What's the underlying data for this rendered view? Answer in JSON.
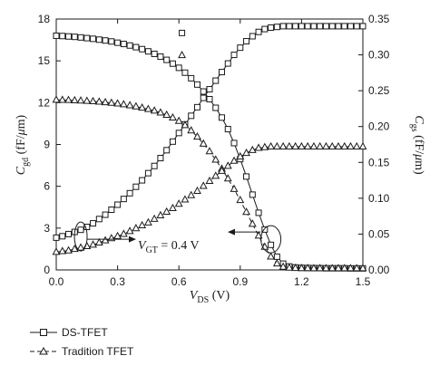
{
  "chart_data": {
    "type": "line",
    "xlabel": {
      "main": "V",
      "sub": "DS",
      "unit": " (V)"
    },
    "ylabel_left": {
      "main": "C",
      "sub": "gd",
      "unit": " (fF/",
      "mu": "μ",
      "end": "m)"
    },
    "ylabel_right": {
      "main": "C",
      "sub": "gs",
      "unit": " (fF/",
      "mu": "μ",
      "end": "m)"
    },
    "xlim": [
      0,
      1.5
    ],
    "ylim_left": [
      0,
      18
    ],
    "ylim_right": [
      0,
      0.35
    ],
    "x_ticks": [
      "0.0",
      "0.3",
      "0.6",
      "0.9",
      "1.2",
      "1.5"
    ],
    "y_ticks_left": [
      "0",
      "3",
      "6",
      "9",
      "12",
      "15",
      "18"
    ],
    "y_ticks_right": [
      "0.00",
      "0.05",
      "0.10",
      "0.15",
      "0.20",
      "0.25",
      "0.30",
      "0.35"
    ],
    "annotation": {
      "main": "V",
      "sub": "GT",
      "rest": " = 0.4 V"
    },
    "legend": [
      {
        "name": "DS-TFET",
        "marker": "square",
        "dash": false
      },
      {
        "name": "Tradition TFET",
        "marker": "triangle",
        "dash": true
      }
    ],
    "stray_markers": [
      {
        "marker": "square",
        "x": 0.615,
        "y_left": 17.0
      },
      {
        "marker": "triangle",
        "x": 0.615,
        "y_left": 15.4
      }
    ],
    "series": [
      {
        "name": "DS-TFET",
        "quantity": "Cgd",
        "axis": "left",
        "marker": "square",
        "dash": false,
        "x": [
          0.0,
          0.03,
          0.06,
          0.09,
          0.12,
          0.15,
          0.18,
          0.21,
          0.24,
          0.27,
          0.3,
          0.33,
          0.36,
          0.39,
          0.42,
          0.45,
          0.48,
          0.51,
          0.54,
          0.57,
          0.6,
          0.63,
          0.66,
          0.69,
          0.72,
          0.75,
          0.78,
          0.81,
          0.84,
          0.87,
          0.9,
          0.93,
          0.96,
          0.99,
          1.02,
          1.05,
          1.08,
          1.11,
          1.14,
          1.17,
          1.2,
          1.23,
          1.26,
          1.29,
          1.32,
          1.35,
          1.38,
          1.41,
          1.44,
          1.47,
          1.5
        ],
        "y": [
          16.8,
          16.78,
          16.75,
          16.72,
          16.68,
          16.63,
          16.58,
          16.52,
          16.46,
          16.39,
          16.3,
          16.21,
          16.1,
          15.98,
          15.84,
          15.68,
          15.5,
          15.3,
          15.07,
          14.8,
          14.5,
          14.15,
          13.75,
          13.3,
          12.8,
          12.25,
          11.63,
          10.93,
          10.1,
          9.1,
          7.95,
          6.7,
          5.4,
          4.1,
          2.9,
          1.8,
          0.95,
          0.45,
          0.25,
          0.18,
          0.15,
          0.14,
          0.13,
          0.13,
          0.12,
          0.12,
          0.12,
          0.12,
          0.11,
          0.11,
          0.11
        ]
      },
      {
        "name": "DS-TFET",
        "quantity": "Cgs",
        "axis": "right",
        "marker": "square",
        "dash": false,
        "x": [
          0.0,
          0.03,
          0.06,
          0.09,
          0.12,
          0.15,
          0.18,
          0.21,
          0.24,
          0.27,
          0.3,
          0.33,
          0.36,
          0.39,
          0.42,
          0.45,
          0.48,
          0.51,
          0.54,
          0.57,
          0.6,
          0.63,
          0.66,
          0.69,
          0.72,
          0.75,
          0.78,
          0.81,
          0.84,
          0.87,
          0.9,
          0.93,
          0.96,
          0.99,
          1.02,
          1.05,
          1.08,
          1.11,
          1.14,
          1.17,
          1.2,
          1.23,
          1.26,
          1.29,
          1.32,
          1.35,
          1.38,
          1.41,
          1.44,
          1.47,
          1.5
        ],
        "y": [
          0.045,
          0.047,
          0.05,
          0.053,
          0.056,
          0.06,
          0.065,
          0.071,
          0.077,
          0.084,
          0.091,
          0.099,
          0.107,
          0.116,
          0.125,
          0.135,
          0.145,
          0.156,
          0.167,
          0.179,
          0.191,
          0.203,
          0.215,
          0.227,
          0.24,
          0.252,
          0.264,
          0.276,
          0.288,
          0.3,
          0.31,
          0.319,
          0.326,
          0.332,
          0.336,
          0.338,
          0.339,
          0.34,
          0.34,
          0.34,
          0.34,
          0.34,
          0.34,
          0.34,
          0.34,
          0.34,
          0.34,
          0.34,
          0.34,
          0.34,
          0.34
        ]
      },
      {
        "name": "Tradition TFET",
        "quantity": "Cgd",
        "axis": "left",
        "marker": "triangle",
        "dash": true,
        "x": [
          0.0,
          0.03,
          0.06,
          0.09,
          0.12,
          0.15,
          0.18,
          0.21,
          0.24,
          0.27,
          0.3,
          0.33,
          0.36,
          0.39,
          0.42,
          0.45,
          0.48,
          0.51,
          0.54,
          0.57,
          0.6,
          0.63,
          0.66,
          0.69,
          0.72,
          0.75,
          0.78,
          0.81,
          0.84,
          0.87,
          0.9,
          0.93,
          0.96,
          0.99,
          1.02,
          1.05,
          1.08,
          1.11,
          1.14,
          1.17,
          1.2,
          1.23,
          1.26,
          1.29,
          1.32,
          1.35,
          1.38,
          1.41,
          1.44,
          1.47,
          1.5
        ],
        "y": [
          12.2,
          12.19,
          12.18,
          12.16,
          12.14,
          12.12,
          12.09,
          12.06,
          12.02,
          11.98,
          11.93,
          11.87,
          11.8,
          11.72,
          11.63,
          11.53,
          11.42,
          11.28,
          11.12,
          10.92,
          10.68,
          10.38,
          10.0,
          9.55,
          9.05,
          8.5,
          7.9,
          7.25,
          6.55,
          5.8,
          5.0,
          4.15,
          3.3,
          2.45,
          1.65,
          0.95,
          0.45,
          0.22,
          0.15,
          0.13,
          0.12,
          0.12,
          0.11,
          0.11,
          0.11,
          0.11,
          0.11,
          0.11,
          0.11,
          0.11,
          0.11
        ]
      },
      {
        "name": "Tradition TFET",
        "quantity": "Cgs",
        "axis": "right",
        "marker": "triangle",
        "dash": true,
        "x": [
          0.0,
          0.03,
          0.06,
          0.09,
          0.12,
          0.15,
          0.18,
          0.21,
          0.24,
          0.27,
          0.3,
          0.33,
          0.36,
          0.39,
          0.42,
          0.45,
          0.48,
          0.51,
          0.54,
          0.57,
          0.6,
          0.63,
          0.66,
          0.69,
          0.72,
          0.75,
          0.78,
          0.81,
          0.84,
          0.87,
          0.9,
          0.93,
          0.96,
          0.99,
          1.02,
          1.05,
          1.08,
          1.11,
          1.14,
          1.17,
          1.2,
          1.23,
          1.26,
          1.29,
          1.32,
          1.35,
          1.38,
          1.41,
          1.44,
          1.47,
          1.5
        ],
        "y": [
          0.025,
          0.026,
          0.027,
          0.029,
          0.031,
          0.033,
          0.035,
          0.038,
          0.041,
          0.044,
          0.047,
          0.05,
          0.054,
          0.058,
          0.062,
          0.066,
          0.071,
          0.076,
          0.081,
          0.086,
          0.092,
          0.098,
          0.104,
          0.11,
          0.117,
          0.124,
          0.131,
          0.138,
          0.145,
          0.152,
          0.158,
          0.163,
          0.167,
          0.17,
          0.171,
          0.172,
          0.172,
          0.172,
          0.172,
          0.172,
          0.172,
          0.172,
          0.172,
          0.172,
          0.172,
          0.172,
          0.172,
          0.172,
          0.172,
          0.172,
          0.172
        ]
      }
    ]
  }
}
